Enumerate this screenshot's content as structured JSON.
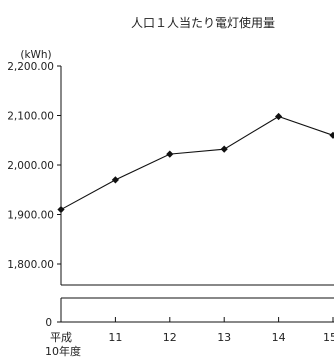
{
  "chart_data": {
    "type": "line",
    "title": "人口１人当たり電灯使用量",
    "unit_label": "(kWh)",
    "categories": [
      "平成\n10年度",
      "11",
      "12",
      "13",
      "14",
      "15"
    ],
    "values": [
      1910,
      1970,
      2022,
      2032,
      2098,
      2060
    ],
    "ylim": [
      1800,
      2200
    ],
    "y_ticks": [
      2200,
      2100,
      2000,
      1900,
      1800
    ],
    "y_tick_labels": [
      "2,200.00",
      "2,100.00",
      "2,000.00",
      "1,900.00",
      "1,800.00"
    ],
    "axis_break": true,
    "baseline_label": "0",
    "grid": false,
    "xlabel": "",
    "ylabel": ""
  }
}
